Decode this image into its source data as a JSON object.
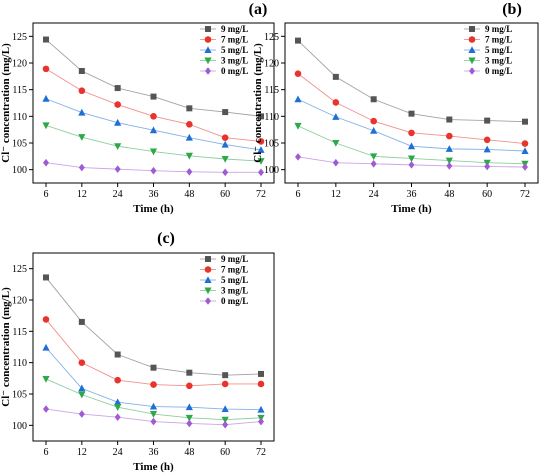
{
  "chart_data": [
    {
      "type": "line",
      "panel_label": "(a)",
      "xlabel": "Time (h)",
      "ylabel": "Cl⁻ concentration (mg/L)",
      "x": [
        6,
        12,
        24,
        36,
        48,
        60,
        72
      ],
      "x_tick_labels": [
        "6",
        "12",
        "24",
        "36",
        "48",
        "60",
        "72"
      ],
      "ylim": [
        97.5,
        127.5
      ],
      "y_ticks": [
        100,
        105,
        110,
        115,
        120,
        125
      ],
      "grid": false,
      "legend_position": "top-right",
      "series": [
        {
          "name": "9 mg/L",
          "color": "#555555",
          "marker": "square",
          "values": [
            124.4,
            118.5,
            115.3,
            113.7,
            111.5,
            110.8,
            110.0
          ]
        },
        {
          "name": "7 mg/L",
          "color": "#e8342c",
          "marker": "circle",
          "values": [
            118.9,
            114.8,
            112.2,
            110.0,
            108.5,
            106.0,
            105.3
          ]
        },
        {
          "name": "5 mg/L",
          "color": "#1e6fd6",
          "marker": "triangle-up",
          "values": [
            113.3,
            110.7,
            108.8,
            107.4,
            106.0,
            104.7,
            103.7
          ]
        },
        {
          "name": "3 mg/L",
          "color": "#2ea84a",
          "marker": "triangle-down",
          "values": [
            108.3,
            106.1,
            104.4,
            103.4,
            102.6,
            102.0,
            101.6
          ]
        },
        {
          "name": "0 mg/L",
          "color": "#a05ad2",
          "marker": "diamond",
          "values": [
            101.3,
            100.4,
            100.1,
            99.8,
            99.6,
            99.5,
            99.5
          ]
        }
      ]
    },
    {
      "type": "line",
      "panel_label": "(b)",
      "xlabel": "Time (h)",
      "ylabel": "Cl⁻ concentration (mg/L)",
      "x": [
        6,
        12,
        24,
        36,
        48,
        60,
        72
      ],
      "x_tick_labels": [
        "6",
        "12",
        "24",
        "36",
        "48",
        "60",
        "72"
      ],
      "ylim": [
        97.5,
        127.5
      ],
      "y_ticks": [
        100,
        105,
        110,
        115,
        120,
        125
      ],
      "grid": false,
      "legend_position": "top-right",
      "series": [
        {
          "name": "9 mg/L",
          "color": "#555555",
          "marker": "square",
          "values": [
            124.2,
            117.4,
            113.2,
            110.5,
            109.4,
            109.2,
            109.0
          ]
        },
        {
          "name": "7 mg/L",
          "color": "#e8342c",
          "marker": "circle",
          "values": [
            118.0,
            112.6,
            109.1,
            106.9,
            106.3,
            105.6,
            104.9
          ]
        },
        {
          "name": "5 mg/L",
          "color": "#1e6fd6",
          "marker": "triangle-up",
          "values": [
            113.2,
            109.9,
            107.3,
            104.4,
            103.9,
            103.8,
            103.5
          ]
        },
        {
          "name": "3 mg/L",
          "color": "#2ea84a",
          "marker": "triangle-down",
          "values": [
            108.2,
            105.0,
            102.5,
            102.1,
            101.7,
            101.3,
            101.1
          ]
        },
        {
          "name": "0 mg/L",
          "color": "#a05ad2",
          "marker": "diamond",
          "values": [
            102.4,
            101.3,
            101.1,
            100.9,
            100.7,
            100.6,
            100.5
          ]
        }
      ]
    },
    {
      "type": "line",
      "panel_label": "(c)",
      "xlabel": "Time (h)",
      "ylabel": "Cl⁻ concentration (mg/L)",
      "x": [
        6,
        12,
        24,
        36,
        48,
        60,
        72
      ],
      "x_tick_labels": [
        "6",
        "12",
        "24",
        "36",
        "48",
        "60",
        "72"
      ],
      "ylim": [
        97.5,
        127.5
      ],
      "y_ticks": [
        100,
        105,
        110,
        115,
        120,
        125
      ],
      "grid": false,
      "legend_position": "top-right",
      "series": [
        {
          "name": "9 mg/L",
          "color": "#555555",
          "marker": "square",
          "values": [
            123.6,
            116.5,
            111.3,
            109.2,
            108.4,
            108.0,
            108.2
          ]
        },
        {
          "name": "7 mg/L",
          "color": "#e8342c",
          "marker": "circle",
          "values": [
            116.9,
            110.0,
            107.2,
            106.5,
            106.3,
            106.6,
            106.6
          ]
        },
        {
          "name": "5 mg/L",
          "color": "#1e6fd6",
          "marker": "triangle-up",
          "values": [
            112.4,
            105.9,
            103.7,
            103.0,
            102.9,
            102.6,
            102.5
          ]
        },
        {
          "name": "3 mg/L",
          "color": "#2ea84a",
          "marker": "triangle-down",
          "values": [
            107.4,
            104.9,
            102.9,
            101.8,
            101.2,
            100.9,
            101.2
          ]
        },
        {
          "name": "0 mg/L",
          "color": "#a05ad2",
          "marker": "diamond",
          "values": [
            102.6,
            101.8,
            101.3,
            100.6,
            100.3,
            100.1,
            100.6
          ]
        }
      ]
    }
  ]
}
